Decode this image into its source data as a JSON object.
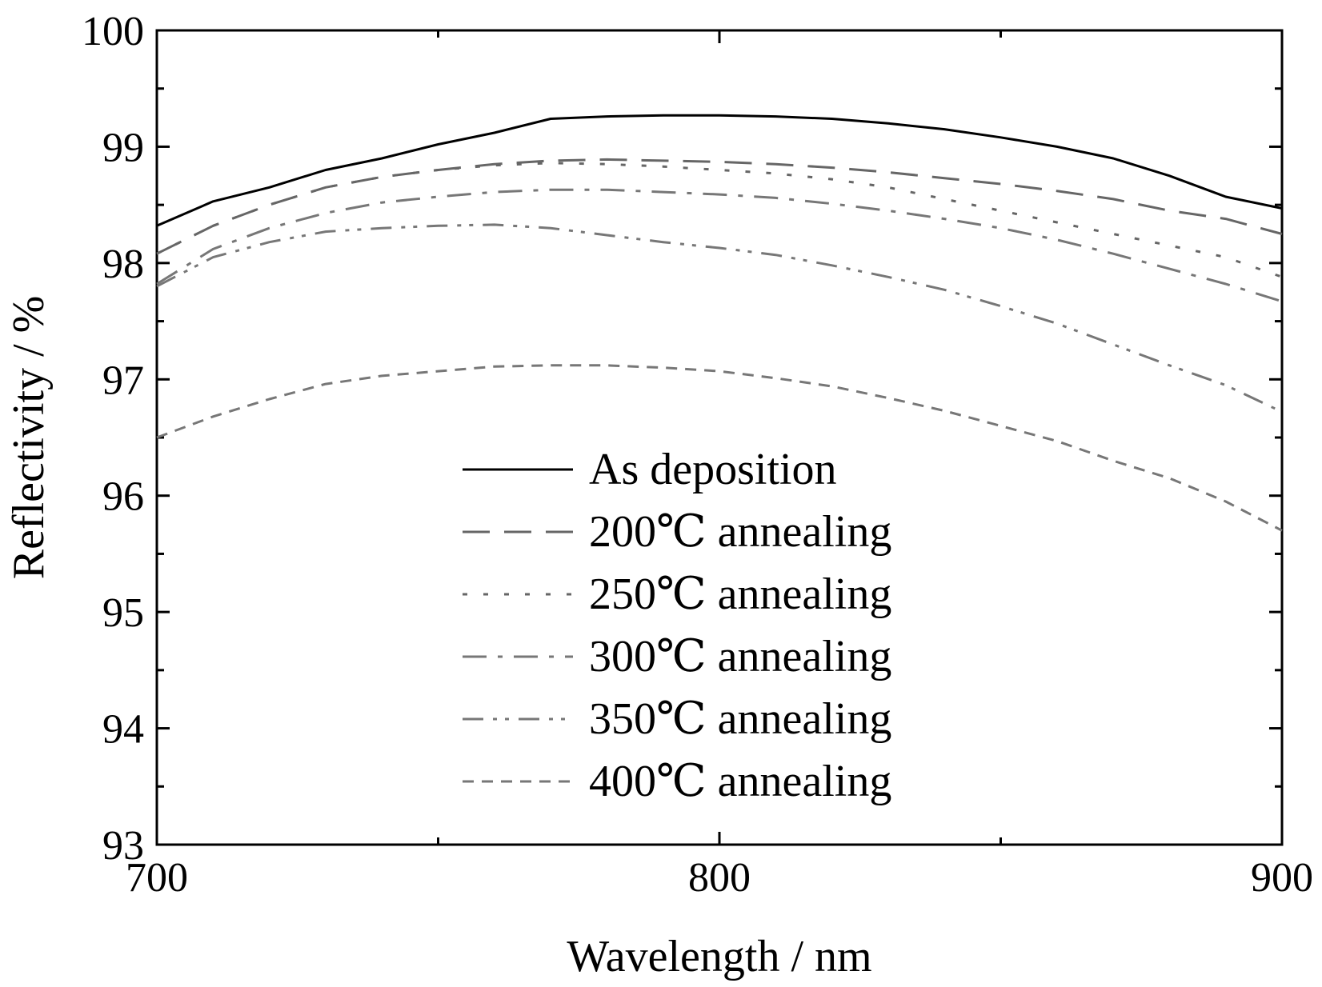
{
  "chart_data": {
    "type": "line",
    "title": "",
    "xlabel": "Wavelength / nm",
    "ylabel": "Reflectivity / %",
    "xlim": [
      700,
      900
    ],
    "ylim": [
      93,
      100
    ],
    "xticks": [
      700,
      800,
      900
    ],
    "yticks": [
      93,
      94,
      95,
      96,
      97,
      98,
      99,
      100
    ],
    "grid": false,
    "legend_position": "lower-center",
    "x": [
      700,
      710,
      720,
      730,
      740,
      750,
      760,
      770,
      780,
      790,
      800,
      810,
      820,
      830,
      840,
      850,
      860,
      870,
      880,
      890,
      900
    ],
    "series": [
      {
        "name": "As deposition",
        "dash": "solid",
        "color": "#000000",
        "values": [
          98.32,
          98.53,
          98.65,
          98.8,
          98.9,
          99.02,
          99.12,
          99.24,
          99.26,
          99.27,
          99.27,
          99.26,
          99.24,
          99.2,
          99.15,
          99.08,
          99.0,
          98.9,
          98.75,
          98.57,
          98.47
        ]
      },
      {
        "name": "200℃ annealing",
        "dash": "long-dash",
        "color": "#666666",
        "values": [
          98.08,
          98.32,
          98.5,
          98.65,
          98.74,
          98.8,
          98.85,
          98.88,
          98.89,
          98.88,
          98.87,
          98.85,
          98.82,
          98.78,
          98.73,
          98.68,
          98.62,
          98.55,
          98.45,
          98.38,
          98.25
        ]
      },
      {
        "name": "250℃ annealing",
        "dash": "dotted",
        "color": "#666666",
        "values": [
          98.08,
          98.32,
          98.5,
          98.65,
          98.74,
          98.8,
          98.84,
          98.86,
          98.85,
          98.83,
          98.8,
          98.77,
          98.72,
          98.65,
          98.55,
          98.45,
          98.35,
          98.25,
          98.15,
          98.05,
          97.88
        ]
      },
      {
        "name": "300℃ annealing",
        "dash": "dash-dot",
        "color": "#777777",
        "values": [
          97.82,
          98.12,
          98.3,
          98.43,
          98.52,
          98.57,
          98.61,
          98.63,
          98.63,
          98.61,
          98.59,
          98.56,
          98.51,
          98.45,
          98.38,
          98.3,
          98.2,
          98.08,
          97.95,
          97.82,
          97.67
        ]
      },
      {
        "name": "350℃ annealing",
        "dash": "dash-dot-dot",
        "color": "#777777",
        "values": [
          97.8,
          98.05,
          98.18,
          98.27,
          98.3,
          98.32,
          98.33,
          98.3,
          98.24,
          98.18,
          98.13,
          98.07,
          97.98,
          97.88,
          97.77,
          97.63,
          97.48,
          97.3,
          97.12,
          96.95,
          96.72
        ]
      },
      {
        "name": "400℃ annealing",
        "dash": "short-dash",
        "color": "#777777",
        "values": [
          96.5,
          96.68,
          96.83,
          96.96,
          97.03,
          97.07,
          97.11,
          97.12,
          97.12,
          97.1,
          97.07,
          97.01,
          96.94,
          96.84,
          96.73,
          96.6,
          96.47,
          96.3,
          96.15,
          95.95,
          95.7
        ]
      }
    ]
  }
}
